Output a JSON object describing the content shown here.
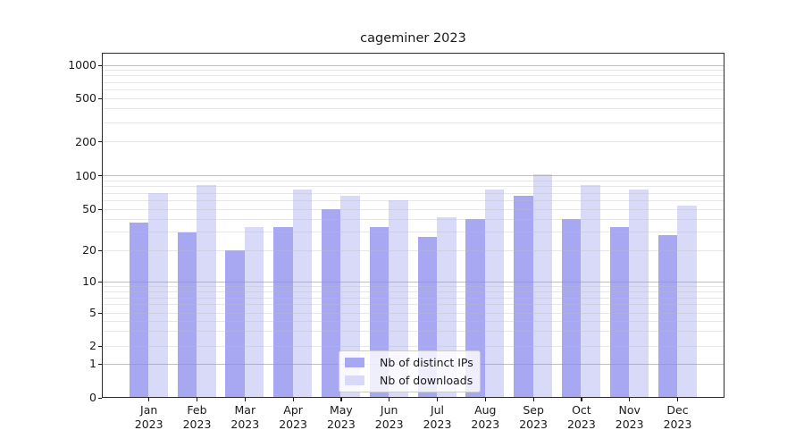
{
  "title": "cageminer 2023",
  "chart_data": {
    "type": "bar",
    "title": "cageminer 2023",
    "categories": [
      "Jan 2023",
      "Feb 2023",
      "Mar 2023",
      "Apr 2023",
      "May 2023",
      "Jun 2023",
      "Jul 2023",
      "Aug 2023",
      "Sep 2023",
      "Oct 2023",
      "Nov 2023",
      "Dec 2023"
    ],
    "series": [
      {
        "name": "Nb of distinct IPs",
        "color": "#a8a8f2",
        "values": [
          37,
          30,
          20,
          34,
          50,
          34,
          27,
          40,
          66,
          40,
          34,
          28
        ]
      },
      {
        "name": "Nb of downloads",
        "color": "#d9d9f8",
        "values": [
          70,
          83,
          34,
          76,
          66,
          60,
          42,
          75,
          104,
          83,
          75,
          54
        ]
      }
    ],
    "yscale": "symlog",
    "y_ticks": [
      0,
      1,
      2,
      5,
      10,
      20,
      50,
      100,
      200,
      500,
      1000
    ],
    "ylim": [
      0,
      1300
    ],
    "xlabel": "",
    "ylabel": "",
    "grid": true,
    "legend_position": "lower center"
  },
  "colors": {
    "bar_distinct_ips": "#a8a8f2",
    "bar_downloads": "#d9d9f8",
    "grid_major": "#b9b9b9",
    "grid_minor": "#e8e8ec",
    "text": "#1a1a1a"
  }
}
